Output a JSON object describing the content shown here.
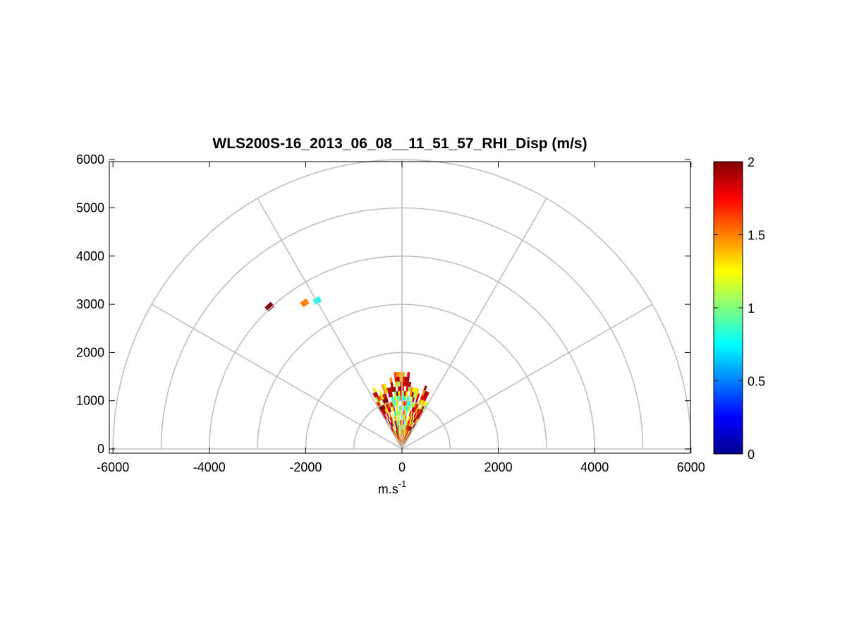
{
  "chart_data": {
    "type": "heatmap",
    "subtype": "polar-rhi-sector",
    "title": "WLS200S-16_2013_06_08__11_51_57_RHI_Disp (m/s)",
    "xlabel": "m.s",
    "xlabel_superscript": "-1",
    "ylabel": "",
    "xlim": [
      -6000,
      6000
    ],
    "ylim": [
      -100,
      6000
    ],
    "xticks": [
      "-6000",
      "-4000",
      "-2000",
      "0",
      "2000",
      "4000",
      "6000"
    ],
    "yticks": [
      "0",
      "1000",
      "2000",
      "3000",
      "4000",
      "5000",
      "6000"
    ],
    "polar_grid": {
      "ranges": [
        1000,
        2000,
        3000,
        4000,
        5000,
        6000
      ],
      "angles_deg": [
        0,
        30,
        60,
        90,
        120,
        150,
        180
      ],
      "color": "#c0c0c0"
    },
    "colorbar": {
      "colormap": "jet",
      "range": [
        0,
        2
      ],
      "ticks": [
        "0",
        "0.5",
        "1",
        "1.5",
        "2"
      ]
    },
    "sector": {
      "angle_range_deg": [
        60,
        120
      ],
      "max_range_m": 1500,
      "range_gate_m": 100,
      "beam_step_deg": 2,
      "value_range": [
        0,
        2
      ]
    },
    "isolated_points": [
      {
        "x": -2750,
        "y": 2950,
        "value": 2.0
      },
      {
        "x": -2020,
        "y": 3030,
        "value": 1.5
      },
      {
        "x": -1760,
        "y": 3080,
        "value": 0.8
      }
    ]
  }
}
